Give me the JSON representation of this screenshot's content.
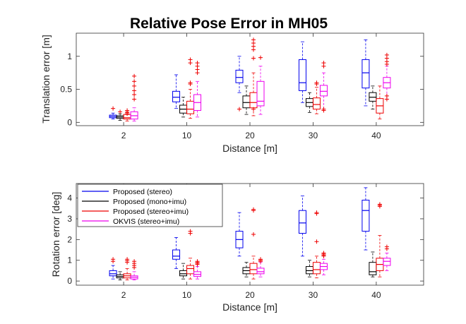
{
  "title": "Relative Pose Error in MH05",
  "series_colors": [
    "#0000ee",
    "#000000",
    "#ee0000",
    "#ee00ee"
  ],
  "chart_data": [
    {
      "type": "box",
      "xlabel": "Distance [m]",
      "ylabel": "Translation error [m]",
      "categories": [
        "2",
        "10",
        "20",
        "30",
        "40"
      ],
      "ylim": [
        -0.05,
        1.35
      ],
      "yticks": [
        0,
        0.5,
        1
      ],
      "ytick_labels": [
        "0",
        "0.5",
        "1"
      ],
      "series": [
        {
          "name": "Proposed (stereo)",
          "color": "#0000ee",
          "boxes": [
            {
              "whislo": 0.05,
              "q1": 0.07,
              "med": 0.09,
              "q3": 0.11,
              "whishi": 0.14,
              "fliers": [
                0.21
              ]
            },
            {
              "whislo": 0.21,
              "q1": 0.31,
              "med": 0.38,
              "q3": 0.47,
              "whishi": 0.72,
              "fliers": []
            },
            {
              "whislo": 0.45,
              "q1": 0.6,
              "med": 0.68,
              "q3": 0.79,
              "whishi": 1.0,
              "fliers": [
                0.2
              ]
            },
            {
              "whislo": 0.3,
              "q1": 0.48,
              "med": 0.6,
              "q3": 0.95,
              "whishi": 1.22,
              "fliers": []
            },
            {
              "whislo": 0.25,
              "q1": 0.52,
              "med": 0.75,
              "q3": 0.95,
              "whishi": 1.25,
              "fliers": []
            }
          ]
        },
        {
          "name": "Proposed (mono+imu)",
          "color": "#000000",
          "boxes": [
            {
              "whislo": 0.03,
              "q1": 0.06,
              "med": 0.08,
              "q3": 0.1,
              "whishi": 0.13,
              "fliers": [
                0.16
              ]
            },
            {
              "whislo": 0.08,
              "q1": 0.14,
              "med": 0.2,
              "q3": 0.26,
              "whishi": 0.38,
              "fliers": []
            },
            {
              "whislo": 0.12,
              "q1": 0.22,
              "med": 0.3,
              "q3": 0.4,
              "whishi": 0.55,
              "fliers": []
            },
            {
              "whislo": 0.15,
              "q1": 0.24,
              "med": 0.3,
              "q3": 0.36,
              "whishi": 0.45,
              "fliers": []
            },
            {
              "whislo": 0.2,
              "q1": 0.32,
              "med": 0.38,
              "q3": 0.45,
              "whishi": 0.55,
              "fliers": []
            }
          ]
        },
        {
          "name": "Proposed (stereo+imu)",
          "color": "#ee0000",
          "boxes": [
            {
              "whislo": 0.02,
              "q1": 0.05,
              "med": 0.07,
              "q3": 0.12,
              "whishi": 0.16,
              "fliers": [
                0.18,
                0.15,
                0.13
              ]
            },
            {
              "whislo": 0.06,
              "q1": 0.13,
              "med": 0.2,
              "q3": 0.32,
              "whishi": 0.5,
              "fliers": [
                0.95,
                0.9,
                0.6,
                0.58
              ]
            },
            {
              "whislo": 0.1,
              "q1": 0.22,
              "med": 0.3,
              "q3": 0.45,
              "whishi": 0.75,
              "fliers": [
                1.25,
                1.2,
                1.15,
                1.1,
                0.97,
                0.2
              ]
            },
            {
              "whislo": 0.13,
              "q1": 0.2,
              "med": 0.27,
              "q3": 0.37,
              "whishi": 0.53,
              "fliers": [
                0.6,
                0.58
              ]
            },
            {
              "whislo": 0.05,
              "q1": 0.14,
              "med": 0.25,
              "q3": 0.36,
              "whishi": 0.55,
              "fliers": []
            }
          ]
        },
        {
          "name": "OKVIS (stereo+imu)",
          "color": "#ee00ee",
          "boxes": [
            {
              "whislo": 0.02,
              "q1": 0.05,
              "med": 0.1,
              "q3": 0.16,
              "whishi": 0.22,
              "fliers": [
                0.7,
                0.62,
                0.55,
                0.48,
                0.42,
                0.35
              ]
            },
            {
              "whislo": 0.08,
              "q1": 0.18,
              "med": 0.3,
              "q3": 0.42,
              "whishi": 0.62,
              "fliers": [
                0.9,
                0.85,
                0.8,
                0.75
              ]
            },
            {
              "whislo": 0.12,
              "q1": 0.25,
              "med": 0.32,
              "q3": 0.62,
              "whishi": 0.85,
              "fliers": [
                0.98
              ]
            },
            {
              "whislo": 0.2,
              "q1": 0.4,
              "med": 0.47,
              "q3": 0.56,
              "whishi": 0.75,
              "fliers": [
                0.9,
                0.85,
                0.2,
                0.18
              ]
            },
            {
              "whislo": 0.35,
              "q1": 0.52,
              "med": 0.6,
              "q3": 0.68,
              "whishi": 0.85,
              "fliers": [
                1.02,
                0.97,
                0.92,
                0.88,
                0.4,
                0.35
              ]
            }
          ]
        }
      ]
    },
    {
      "type": "box",
      "xlabel": "Distance [m]",
      "ylabel": "Rotation error [deg]",
      "categories": [
        "2",
        "10",
        "20",
        "30",
        "40"
      ],
      "ylim": [
        -0.2,
        4.7
      ],
      "yticks": [
        0,
        1,
        2,
        3,
        4
      ],
      "ytick_labels": [
        "0",
        "1",
        "2",
        "3",
        "4"
      ],
      "legend": [
        "Proposed (stereo)",
        "Proposed (mono+imu)",
        "Proposed (stereo+imu)",
        "OKVIS (stereo+imu)"
      ],
      "legend_loc": "top-left",
      "series": [
        {
          "name": "Proposed (stereo)",
          "color": "#0000ee",
          "boxes": [
            {
              "whislo": 0.1,
              "q1": 0.25,
              "med": 0.35,
              "q3": 0.5,
              "whishi": 0.75,
              "fliers": [
                1.05,
                0.95
              ]
            },
            {
              "whislo": 0.6,
              "q1": 1.05,
              "med": 1.2,
              "q3": 1.5,
              "whishi": 2.1,
              "fliers": []
            },
            {
              "whislo": 1.2,
              "q1": 1.6,
              "med": 2.0,
              "q3": 2.4,
              "whishi": 3.3,
              "fliers": []
            },
            {
              "whislo": 1.2,
              "q1": 2.3,
              "med": 2.8,
              "q3": 3.4,
              "whishi": 4.1,
              "fliers": []
            },
            {
              "whislo": 1.5,
              "q1": 2.4,
              "med": 3.4,
              "q3": 3.9,
              "whishi": 4.5,
              "fliers": []
            }
          ]
        },
        {
          "name": "Proposed (mono+imu)",
          "color": "#000000",
          "boxes": [
            {
              "whislo": 0.05,
              "q1": 0.15,
              "med": 0.22,
              "q3": 0.3,
              "whishi": 0.45,
              "fliers": []
            },
            {
              "whislo": 0.1,
              "q1": 0.25,
              "med": 0.35,
              "q3": 0.5,
              "whishi": 0.85,
              "fliers": []
            },
            {
              "whislo": 0.2,
              "q1": 0.35,
              "med": 0.5,
              "q3": 0.65,
              "whishi": 0.9,
              "fliers": []
            },
            {
              "whislo": 0.2,
              "q1": 0.35,
              "med": 0.5,
              "q3": 0.7,
              "whishi": 1.0,
              "fliers": []
            },
            {
              "whislo": 0.2,
              "q1": 0.3,
              "med": 0.45,
              "q3": 0.9,
              "whishi": 1.4,
              "fliers": []
            }
          ]
        },
        {
          "name": "Proposed (stereo+imu)",
          "color": "#ee0000",
          "boxes": [
            {
              "whislo": 0.05,
              "q1": 0.15,
              "med": 0.25,
              "q3": 0.35,
              "whishi": 0.6,
              "fliers": [
                1.05,
                0.98,
                0.9
              ]
            },
            {
              "whislo": 0.1,
              "q1": 0.35,
              "med": 0.6,
              "q3": 0.75,
              "whishi": 1.1,
              "fliers": [
                2.4,
                2.3
              ]
            },
            {
              "whislo": 0.1,
              "q1": 0.35,
              "med": 0.55,
              "q3": 0.85,
              "whishi": 1.2,
              "fliers": [
                3.45,
                3.4,
                2.25
              ]
            },
            {
              "whislo": 0.15,
              "q1": 0.35,
              "med": 0.55,
              "q3": 0.9,
              "whishi": 1.2,
              "fliers": [
                3.3,
                3.25,
                1.9
              ]
            },
            {
              "whislo": 0.2,
              "q1": 0.5,
              "med": 0.8,
              "q3": 1.1,
              "whishi": 2.2,
              "fliers": [
                3.7,
                3.65,
                3.6
              ]
            }
          ]
        },
        {
          "name": "OKVIS (stereo+imu)",
          "color": "#ee00ee",
          "boxes": [
            {
              "whislo": 0.05,
              "q1": 0.1,
              "med": 0.18,
              "q3": 0.25,
              "whishi": 0.45,
              "fliers": [
                0.95,
                0.85,
                0.75,
                0.65
              ]
            },
            {
              "whislo": 0.1,
              "q1": 0.22,
              "med": 0.32,
              "q3": 0.45,
              "whishi": 0.7,
              "fliers": [
                0.95,
                0.9,
                0.85,
                0.8
              ]
            },
            {
              "whislo": 0.2,
              "q1": 0.35,
              "med": 0.45,
              "q3": 0.62,
              "whishi": 0.9,
              "fliers": [
                1.05,
                1.0,
                0.95
              ]
            },
            {
              "whislo": 0.3,
              "q1": 0.55,
              "med": 0.7,
              "q3": 0.85,
              "whishi": 1.05,
              "fliers": [
                1.35,
                1.3,
                1.25,
                1.2
              ]
            },
            {
              "whislo": 0.5,
              "q1": 0.75,
              "med": 0.95,
              "q3": 1.1,
              "whishi": 1.35,
              "fliers": [
                1.65,
                1.55
              ]
            }
          ]
        }
      ]
    }
  ]
}
